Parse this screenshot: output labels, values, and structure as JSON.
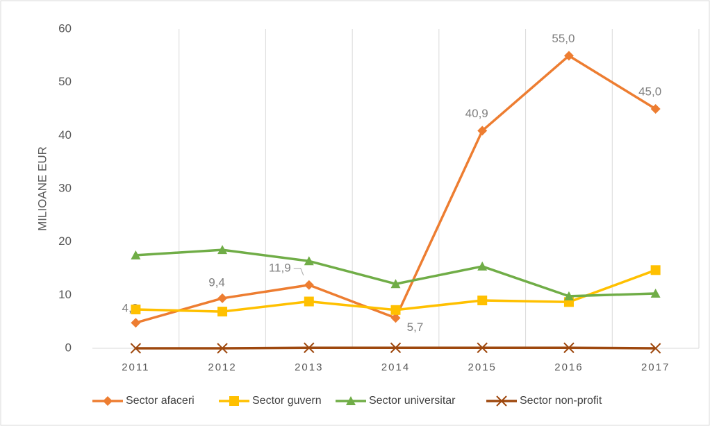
{
  "chart_data": {
    "type": "line",
    "y_label": "MILIOANE EUR",
    "categories": [
      "2011",
      "2012",
      "2013",
      "2014",
      "2015",
      "2016",
      "2017"
    ],
    "ylim": [
      0,
      60
    ],
    "yticks": [
      0,
      10,
      20,
      30,
      40,
      50,
      60
    ],
    "grid": true,
    "legend": "bottom",
    "series": [
      {
        "name": "Sector afaceri",
        "color": "#ED7D31",
        "marker": "diamond",
        "values": [
          4.8,
          9.4,
          11.9,
          5.7,
          40.9,
          55.0,
          45.0
        ],
        "value_labels": [
          "4,8",
          "9,4",
          "11,9",
          "5,7",
          "40,9",
          "55,0",
          "45,0"
        ]
      },
      {
        "name": "Sector guvern",
        "color": "#FFC000",
        "marker": "square",
        "values": [
          7.3,
          6.9,
          8.8,
          7.2,
          9.0,
          8.7,
          14.7
        ]
      },
      {
        "name": "Sector universitar",
        "color": "#70AD47",
        "marker": "triangle",
        "values": [
          17.5,
          18.5,
          16.4,
          12.1,
          15.4,
          9.8,
          10.3
        ]
      },
      {
        "name": "Sector non-profit",
        "color": "#9E480E",
        "marker": "x",
        "values": [
          0,
          0,
          0.1,
          0.1,
          0.1,
          0.1,
          0
        ]
      }
    ]
  }
}
